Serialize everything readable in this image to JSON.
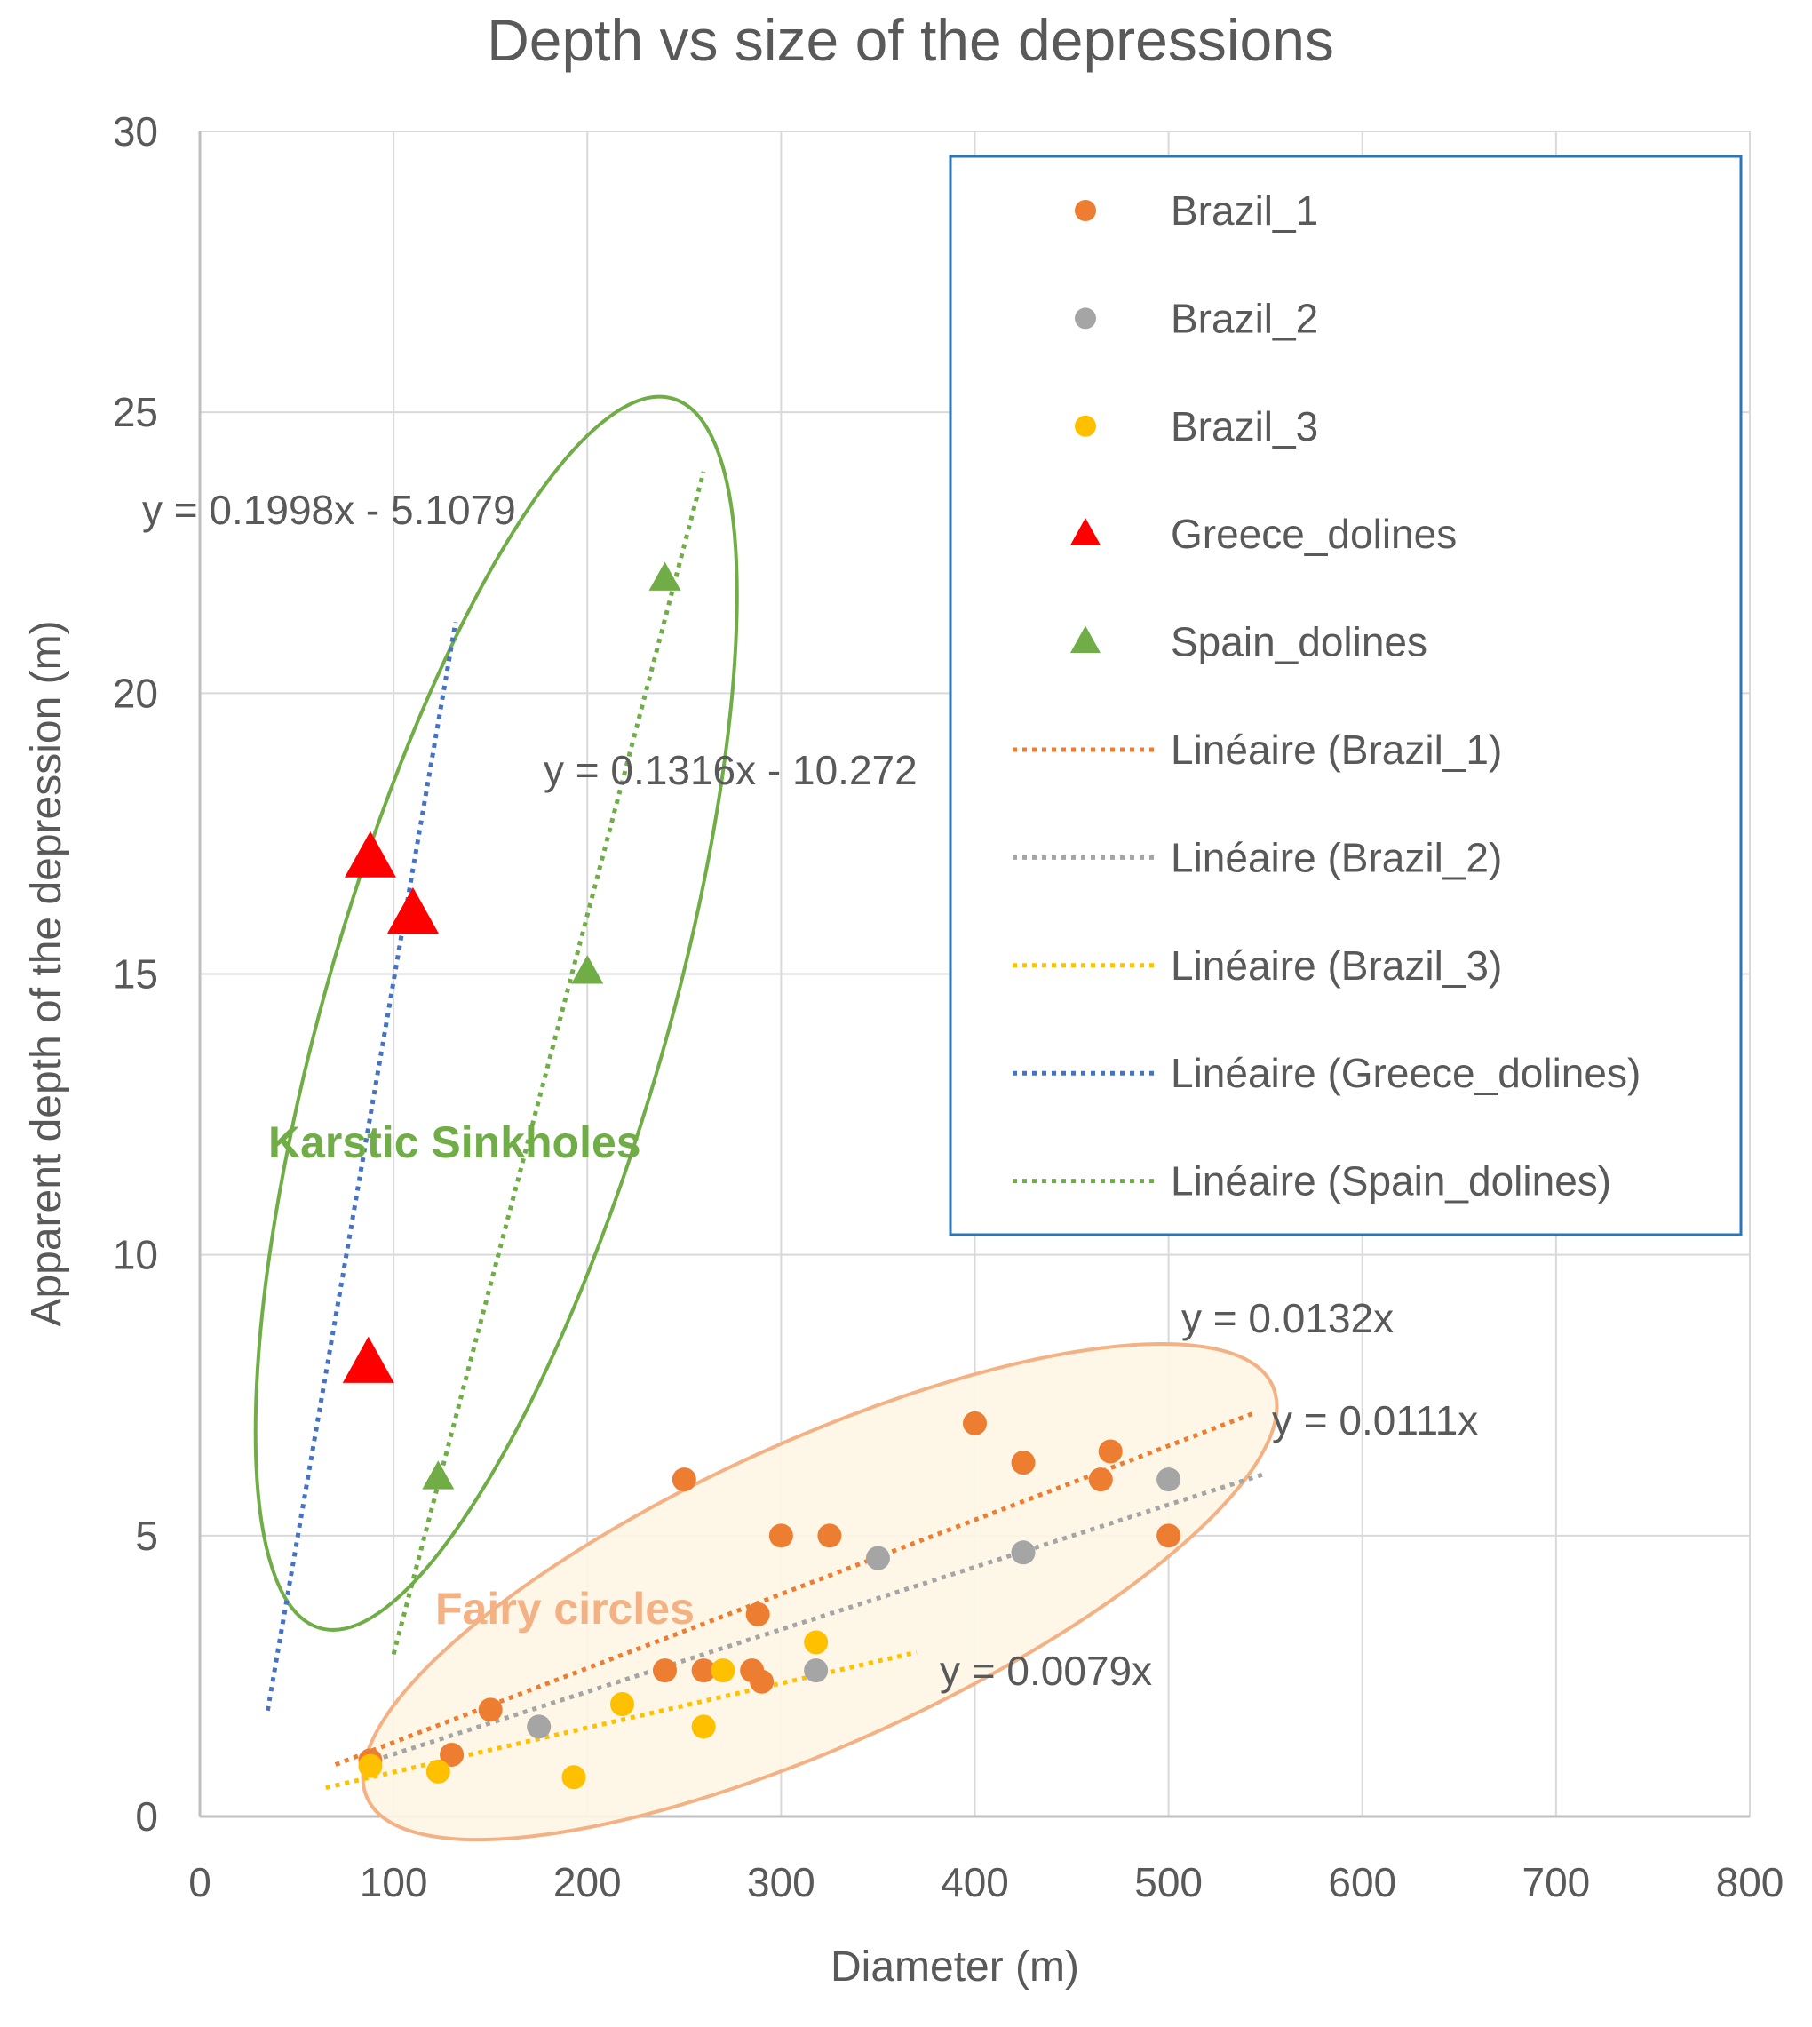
{
  "chart_data": {
    "type": "scatter",
    "title": "Depth vs size of the depressions",
    "xlabel": "Diameter (m)",
    "ylabel": "Apparent depth of the depression (m)",
    "xlim": [
      0,
      800
    ],
    "ylim": [
      0,
      30
    ],
    "x_ticks": [
      0,
      100,
      200,
      300,
      400,
      500,
      600,
      700,
      800
    ],
    "y_ticks": [
      0,
      5,
      10,
      15,
      20,
      25,
      30
    ],
    "grid": true,
    "legend_position": "top-right",
    "series": [
      {
        "name": "Brazil_1",
        "marker": "circle",
        "color": "#ED7D31",
        "points": [
          [
            88,
            1.0
          ],
          [
            130,
            1.1
          ],
          [
            150,
            1.9
          ],
          [
            240,
            2.6
          ],
          [
            250,
            6.0
          ],
          [
            260,
            2.6
          ],
          [
            285,
            2.6
          ],
          [
            288,
            3.6
          ],
          [
            290,
            2.4
          ],
          [
            300,
            5.0
          ],
          [
            325,
            5.0
          ],
          [
            400,
            7.0
          ],
          [
            425,
            6.3
          ],
          [
            465,
            6.0
          ],
          [
            470,
            6.5
          ],
          [
            500,
            5.0
          ]
        ]
      },
      {
        "name": "Brazil_2",
        "marker": "circle",
        "color": "#A5A5A5",
        "points": [
          [
            175,
            1.6
          ],
          [
            318,
            2.6
          ],
          [
            350,
            4.6
          ],
          [
            425,
            4.7
          ],
          [
            500,
            6.0
          ]
        ]
      },
      {
        "name": "Brazil_3",
        "marker": "circle",
        "color": "#FFC000",
        "points": [
          [
            88,
            0.9
          ],
          [
            123,
            0.8
          ],
          [
            193,
            0.7
          ],
          [
            218,
            2.0
          ],
          [
            260,
            1.6
          ],
          [
            270,
            2.6
          ],
          [
            318,
            3.1
          ]
        ]
      },
      {
        "name": "Greece_dolines",
        "marker": "triangle-large",
        "color": "#FF0000",
        "points": [
          [
            88,
            17.0
          ],
          [
            110,
            16.0
          ],
          [
            87,
            8.0
          ]
        ]
      },
      {
        "name": "Spain_dolines",
        "marker": "triangle",
        "color": "#70AD47",
        "points": [
          [
            123,
            6.0
          ],
          [
            200,
            15.0
          ],
          [
            240,
            22.0
          ]
        ]
      }
    ],
    "trendlines": [
      {
        "name": "Linéaire (Brazil_1)",
        "color": "#ED7D31",
        "equation": "y = 0.0132x",
        "slope": 0.0132,
        "intercept": 0,
        "x_range": [
          70,
          545
        ]
      },
      {
        "name": "Linéaire (Brazil_2)",
        "color": "#A5A5A5",
        "equation": "y = 0.0111x",
        "slope": 0.0111,
        "intercept": 0,
        "x_range": [
          90,
          550
        ]
      },
      {
        "name": "Linéaire (Brazil_3)",
        "color": "#FFC000",
        "equation": "y = 0.0079x",
        "slope": 0.0079,
        "intercept": 0,
        "x_range": [
          65,
          370
        ]
      },
      {
        "name": "Linéaire (Greece_dolines)",
        "color": "#4472C4",
        "equation": "y = 0.1998x - 5.1079",
        "slope": 0.1998,
        "intercept": -5.1079,
        "x_range": [
          35,
          132
        ]
      },
      {
        "name": "Linéaire (Spain_dolines)",
        "color": "#70AD47",
        "equation": "y = 0.1316x - 10.272",
        "slope": 0.1316,
        "intercept": -10.272,
        "x_range": [
          100,
          260
        ]
      }
    ],
    "annotations": {
      "karstic_label": "Karstic Sinkholes",
      "fairy_label": "Fairy circles"
    }
  }
}
